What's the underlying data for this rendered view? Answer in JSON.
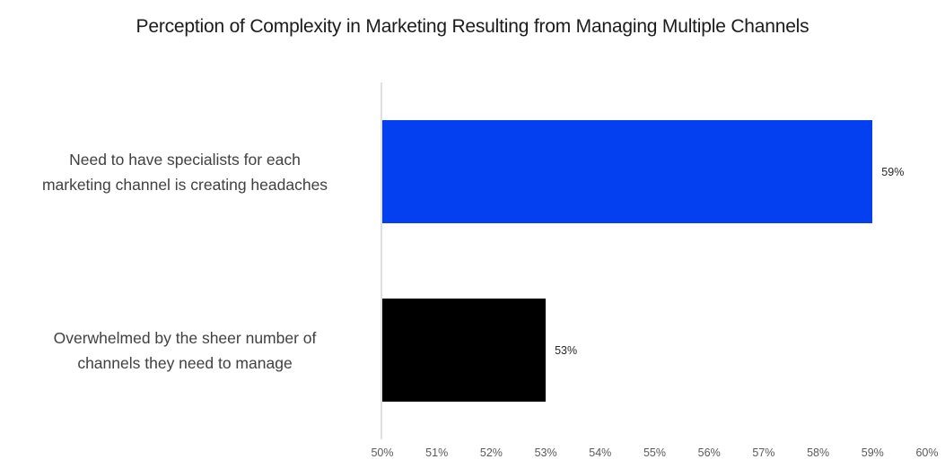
{
  "chart_data": {
    "type": "bar",
    "orientation": "horizontal",
    "title": "Perception of Complexity in Marketing Resulting from Managing Multiple Channels",
    "categories": [
      "Need to have specialists for each marketing channel is creating headaches",
      "Overwhelmed by the sheer number of channels they need to manage"
    ],
    "values": [
      59,
      53
    ],
    "data_labels": [
      "59%",
      "53%"
    ],
    "bar_colors": [
      "#0540f0",
      "#000000"
    ],
    "xlim": [
      50,
      60
    ],
    "x_tick_labels": [
      "50%",
      "51%",
      "52%",
      "53%",
      "54%",
      "55%",
      "56%",
      "57%",
      "58%",
      "59%",
      "60%"
    ],
    "x_tick_step": 1,
    "grid": false,
    "legend_position": "none",
    "xlabel": "",
    "ylabel": ""
  },
  "colors": {
    "title_text": "#1b1b1b",
    "category_text": "#404040",
    "data_label_text": "#262626",
    "tick_text": "#595959",
    "axis_line": "#dfdfdf",
    "background": "#ffffff"
  }
}
